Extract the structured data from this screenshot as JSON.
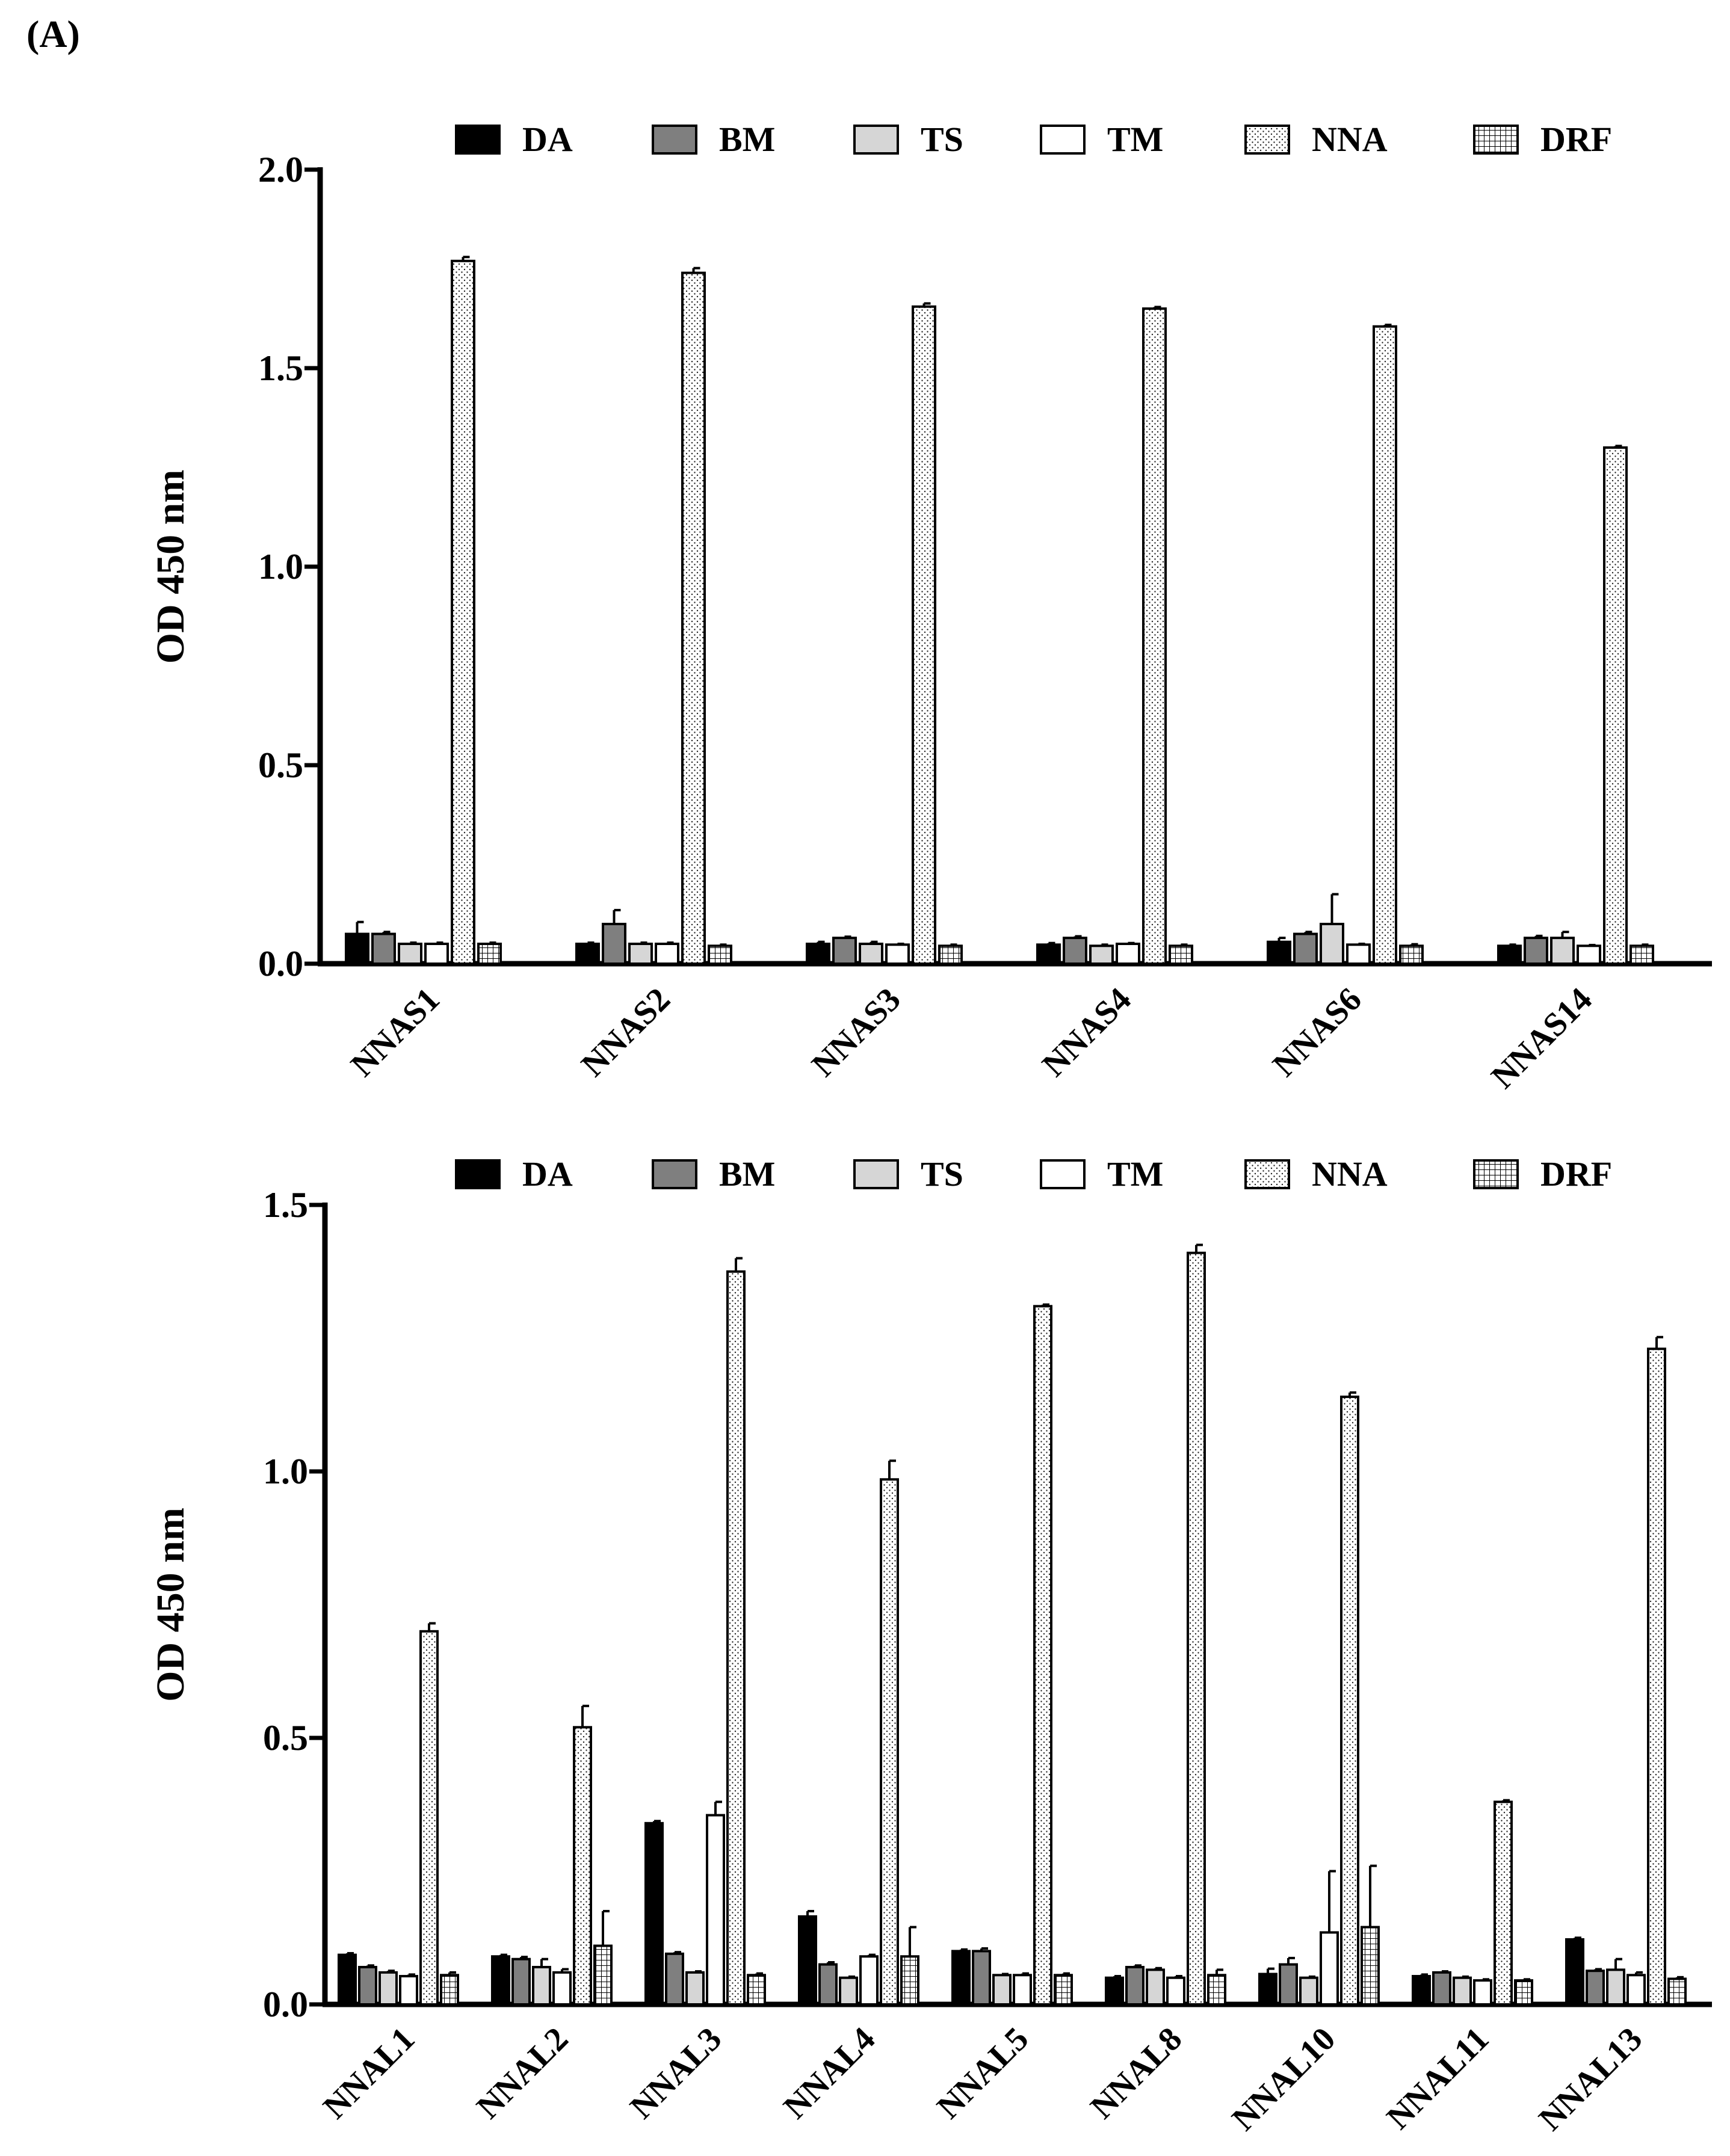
{
  "panel_label": "(A)",
  "chart_data": [
    {
      "type": "bar",
      "title": "",
      "xlabel": "",
      "ylabel": "OD 450 nm",
      "ylim": [
        0,
        2.0
      ],
      "yticks": [
        0.0,
        0.5,
        1.0,
        1.5,
        2.0
      ],
      "ytick_labels": [
        "0.0",
        "0.5",
        "1.0",
        "1.5",
        "2.0"
      ],
      "legend_position": "top",
      "categories": [
        "NNAS1",
        "NNAS2",
        "NNAS3",
        "NNAS4",
        "NNAS6",
        "NNAS14"
      ],
      "series": [
        {
          "name": "DA",
          "pattern": "solid-black",
          "values": [
            0.075,
            0.05,
            0.05,
            0.048,
            0.055,
            0.045
          ],
          "errors": [
            0.03,
            0.003,
            0.005,
            0.004,
            0.01,
            0.003
          ]
        },
        {
          "name": "BM",
          "pattern": "solid-dark-gray",
          "values": [
            0.075,
            0.1,
            0.065,
            0.065,
            0.075,
            0.065
          ],
          "errors": [
            0.005,
            0.035,
            0.003,
            0.004,
            0.005,
            0.005
          ]
        },
        {
          "name": "TS",
          "pattern": "solid-light-gray",
          "values": [
            0.05,
            0.05,
            0.05,
            0.045,
            0.1,
            0.065
          ],
          "errors": [
            0.003,
            0.003,
            0.005,
            0.003,
            0.075,
            0.015
          ]
        },
        {
          "name": "TM",
          "pattern": "white",
          "values": [
            0.05,
            0.05,
            0.048,
            0.05,
            0.048,
            0.045
          ],
          "errors": [
            0.003,
            0.003,
            0.002,
            0.002,
            0.002,
            0.002
          ]
        },
        {
          "name": "NNA",
          "pattern": "dotted",
          "values": [
            1.77,
            1.74,
            1.655,
            1.65,
            1.605,
            1.3
          ],
          "errors": [
            0.01,
            0.012,
            0.008,
            0.004,
            0.004,
            0.004
          ]
        },
        {
          "name": "DRF",
          "pattern": "grid",
          "values": [
            0.05,
            0.045,
            0.045,
            0.045,
            0.045,
            0.045
          ],
          "errors": [
            0.003,
            0.003,
            0.003,
            0.003,
            0.004,
            0.003
          ]
        }
      ]
    },
    {
      "type": "bar",
      "title": "",
      "xlabel": "",
      "ylabel": "OD 450 nm",
      "ylim": [
        0,
        1.5
      ],
      "yticks": [
        0.0,
        0.5,
        1.0,
        1.5
      ],
      "ytick_labels": [
        "0.0",
        "0.5",
        "1.0",
        "1.5"
      ],
      "legend_position": "top",
      "categories": [
        "NNAL1",
        "NNAL2",
        "NNAL3",
        "NNAL4",
        "NNAL5",
        "NNAL8",
        "NNAL10",
        "NNAL11",
        "NNAL13"
      ],
      "series": [
        {
          "name": "DA",
          "pattern": "solid-black",
          "values": [
            0.093,
            0.09,
            0.34,
            0.165,
            0.1,
            0.05,
            0.057,
            0.053,
            0.122
          ],
          "errors": [
            0.003,
            0.003,
            0.004,
            0.01,
            0.003,
            0.003,
            0.01,
            0.003,
            0.003
          ]
        },
        {
          "name": "BM",
          "pattern": "solid-dark-gray",
          "values": [
            0.07,
            0.085,
            0.095,
            0.075,
            0.1,
            0.07,
            0.075,
            0.06,
            0.063
          ],
          "errors": [
            0.003,
            0.004,
            0.003,
            0.004,
            0.005,
            0.003,
            0.012,
            0.002,
            0.003
          ]
        },
        {
          "name": "TS",
          "pattern": "solid-light-gray",
          "values": [
            0.06,
            0.07,
            0.06,
            0.05,
            0.055,
            0.065,
            0.05,
            0.05,
            0.065
          ],
          "errors": [
            0.003,
            0.015,
            0.002,
            0.002,
            0.002,
            0.003,
            0.002,
            0.002,
            0.02
          ]
        },
        {
          "name": "TM",
          "pattern": "white",
          "values": [
            0.053,
            0.06,
            0.355,
            0.09,
            0.055,
            0.05,
            0.135,
            0.045,
            0.055
          ],
          "errors": [
            0.003,
            0.006,
            0.025,
            0.003,
            0.003,
            0.003,
            0.115,
            0.002,
            0.005
          ]
        },
        {
          "name": "NNA",
          "pattern": "dotted",
          "values": [
            0.7,
            0.52,
            1.375,
            0.985,
            1.31,
            1.41,
            1.14,
            0.38,
            1.23
          ],
          "errors": [
            0.015,
            0.04,
            0.025,
            0.035,
            0.003,
            0.015,
            0.008,
            0.003,
            0.022
          ]
        },
        {
          "name": "DRF",
          "pattern": "grid",
          "values": [
            0.055,
            0.11,
            0.055,
            0.09,
            0.055,
            0.055,
            0.145,
            0.045,
            0.048
          ],
          "errors": [
            0.005,
            0.065,
            0.003,
            0.055,
            0.003,
            0.01,
            0.115,
            0.002,
            0.003
          ]
        }
      ]
    }
  ]
}
